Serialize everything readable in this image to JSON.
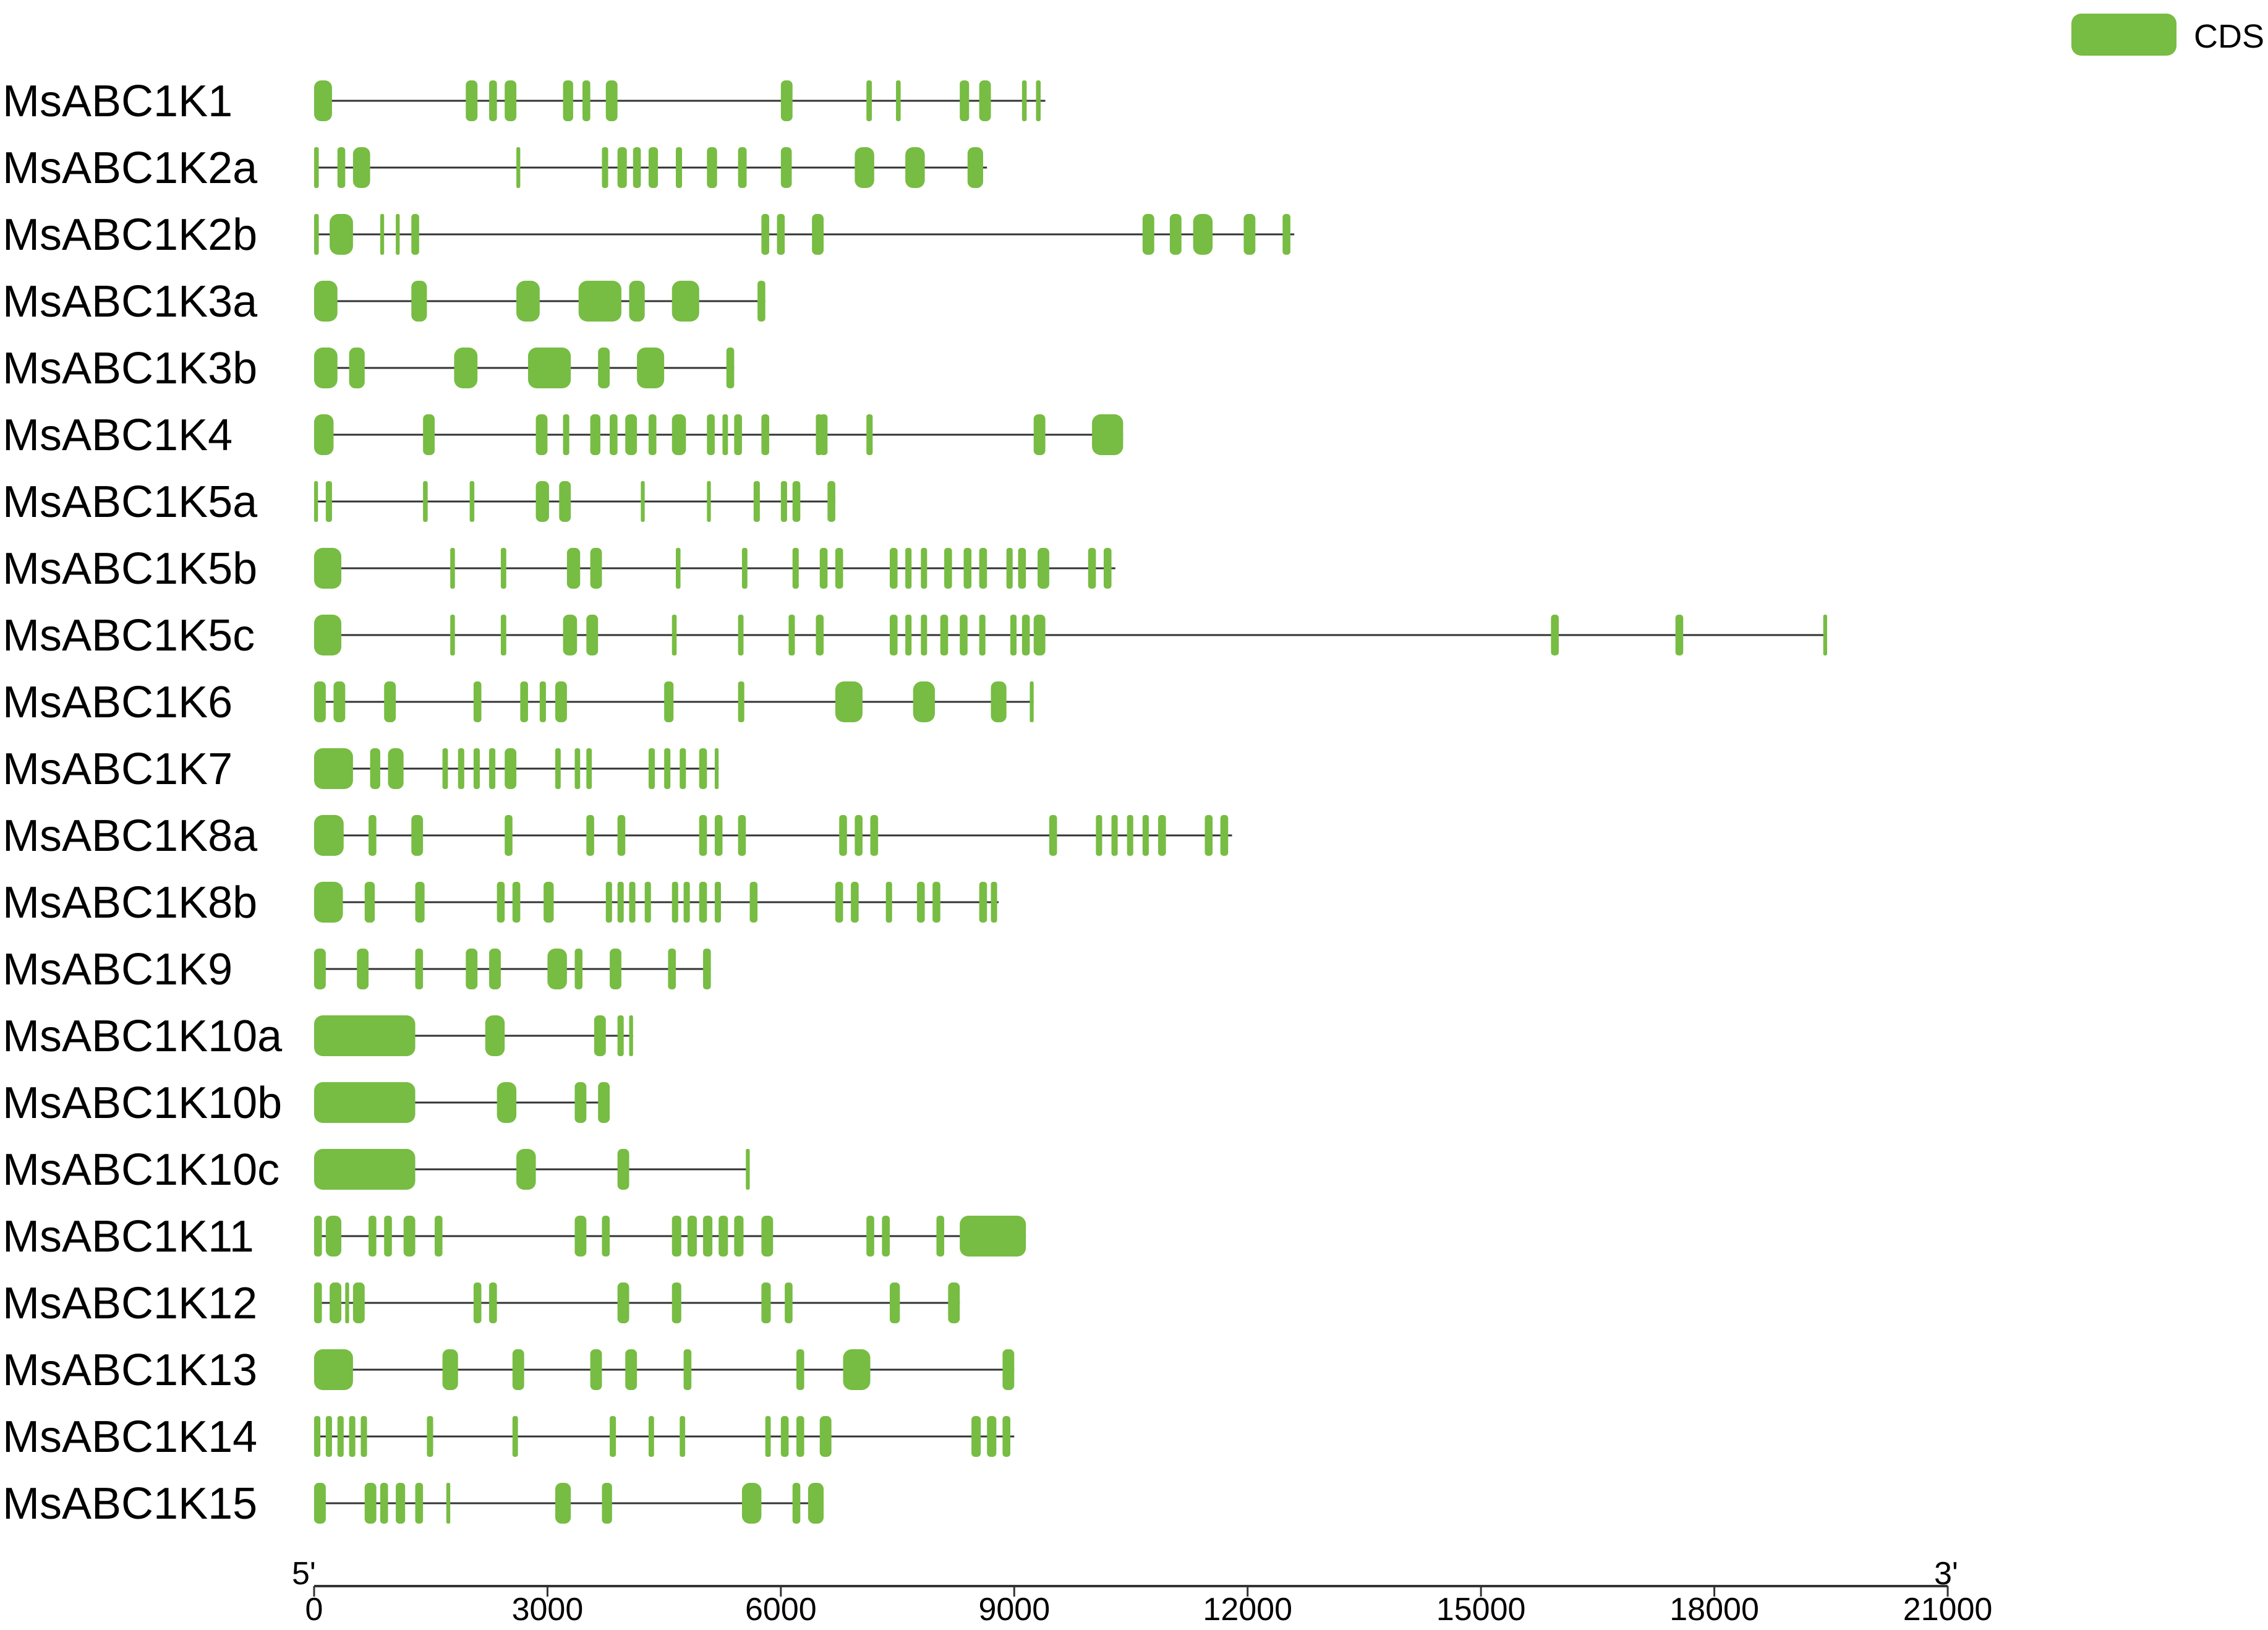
{
  "legend": {
    "label": "CDS",
    "color": "#77bc43"
  },
  "colors": {
    "cds": "#77bc43",
    "line": "#333333",
    "axis": "#333333"
  },
  "axis": {
    "start_label": "5'",
    "end_label": "3'",
    "min": 0,
    "max": 21000,
    "ticks": [
      0,
      3000,
      6000,
      9000,
      12000,
      15000,
      18000,
      21000
    ]
  },
  "genes": [
    {
      "name": "MsABC1K1",
      "length": 9400,
      "exons": [
        [
          0,
          230
        ],
        [
          1950,
          2100
        ],
        [
          2250,
          2350
        ],
        [
          2450,
          2600
        ],
        [
          3200,
          3330
        ],
        [
          3450,
          3550
        ],
        [
          3750,
          3900
        ],
        [
          6000,
          6150
        ],
        [
          7100,
          7170
        ],
        [
          7480,
          7540
        ],
        [
          8300,
          8420
        ],
        [
          8550,
          8700
        ],
        [
          9100,
          9160
        ],
        [
          9280,
          9340
        ]
      ]
    },
    {
      "name": "MsABC1K2a",
      "length": 8650,
      "exons": [
        [
          0,
          60
        ],
        [
          300,
          400
        ],
        [
          500,
          720
        ],
        [
          2600,
          2650
        ],
        [
          3700,
          3780
        ],
        [
          3900,
          4020
        ],
        [
          4100,
          4200
        ],
        [
          4300,
          4420
        ],
        [
          4650,
          4730
        ],
        [
          5050,
          5180
        ],
        [
          5450,
          5560
        ],
        [
          6000,
          6140
        ],
        [
          6950,
          7200
        ],
        [
          7600,
          7850
        ],
        [
          8400,
          8600
        ]
      ]
    },
    {
      "name": "MsABC1K2b",
      "length": 12600,
      "exons": [
        [
          0,
          60
        ],
        [
          200,
          500
        ],
        [
          850,
          900
        ],
        [
          1050,
          1100
        ],
        [
          1250,
          1350
        ],
        [
          5750,
          5850
        ],
        [
          5950,
          6050
        ],
        [
          6400,
          6550
        ],
        [
          10650,
          10800
        ],
        [
          11000,
          11150
        ],
        [
          11300,
          11550
        ],
        [
          11950,
          12100
        ],
        [
          12450,
          12550
        ]
      ]
    },
    {
      "name": "MsABC1K3a",
      "length": 5800,
      "exons": [
        [
          0,
          300
        ],
        [
          1250,
          1450
        ],
        [
          2600,
          2900
        ],
        [
          3400,
          3950
        ],
        [
          4050,
          4250
        ],
        [
          4600,
          4950
        ],
        [
          5700,
          5800
        ]
      ]
    },
    {
      "name": "MsABC1K3b",
      "length": 5400,
      "exons": [
        [
          0,
          300
        ],
        [
          450,
          650
        ],
        [
          1800,
          2100
        ],
        [
          2750,
          3300
        ],
        [
          3650,
          3800
        ],
        [
          4150,
          4500
        ],
        [
          5300,
          5400
        ]
      ]
    },
    {
      "name": "MsABC1K4",
      "length": 10400,
      "exons": [
        [
          0,
          250
        ],
        [
          1400,
          1550
        ],
        [
          2850,
          3000
        ],
        [
          3200,
          3280
        ],
        [
          3550,
          3680
        ],
        [
          3800,
          3900
        ],
        [
          4000,
          4150
        ],
        [
          4300,
          4400
        ],
        [
          4600,
          4780
        ],
        [
          5050,
          5150
        ],
        [
          5250,
          5320
        ],
        [
          5400,
          5500
        ],
        [
          5750,
          5850
        ],
        [
          6450,
          6530
        ],
        [
          6500,
          6600
        ],
        [
          7100,
          7180
        ],
        [
          9250,
          9400
        ],
        [
          10000,
          10400
        ]
      ]
    },
    {
      "name": "MsABC1K5a",
      "length": 6700,
      "exons": [
        [
          0,
          50
        ],
        [
          150,
          230
        ],
        [
          1400,
          1460
        ],
        [
          2000,
          2060
        ],
        [
          2850,
          3020
        ],
        [
          3150,
          3300
        ],
        [
          4200,
          4250
        ],
        [
          5050,
          5100
        ],
        [
          5650,
          5730
        ],
        [
          6000,
          6080
        ],
        [
          6150,
          6250
        ],
        [
          6600,
          6700
        ]
      ]
    },
    {
      "name": "MsABC1K5b",
      "length": 10300,
      "exons": [
        [
          0,
          350
        ],
        [
          1750,
          1810
        ],
        [
          2400,
          2470
        ],
        [
          3250,
          3420
        ],
        [
          3550,
          3700
        ],
        [
          4650,
          4710
        ],
        [
          5500,
          5570
        ],
        [
          6150,
          6230
        ],
        [
          6500,
          6600
        ],
        [
          6700,
          6800
        ],
        [
          7400,
          7500
        ],
        [
          7600,
          7680
        ],
        [
          7800,
          7880
        ],
        [
          8100,
          8200
        ],
        [
          8350,
          8450
        ],
        [
          8550,
          8650
        ],
        [
          8900,
          8980
        ],
        [
          9050,
          9150
        ],
        [
          9300,
          9450
        ],
        [
          9950,
          10050
        ],
        [
          10150,
          10250
        ]
      ]
    },
    {
      "name": "MsABC1K5c",
      "length": 19450,
      "exons": [
        [
          0,
          350
        ],
        [
          1750,
          1810
        ],
        [
          2400,
          2470
        ],
        [
          3200,
          3380
        ],
        [
          3500,
          3650
        ],
        [
          4600,
          4660
        ],
        [
          5450,
          5520
        ],
        [
          6100,
          6180
        ],
        [
          6450,
          6550
        ],
        [
          7400,
          7500
        ],
        [
          7600,
          7680
        ],
        [
          7800,
          7880
        ],
        [
          8050,
          8150
        ],
        [
          8300,
          8400
        ],
        [
          8550,
          8630
        ],
        [
          8950,
          9030
        ],
        [
          9100,
          9200
        ],
        [
          9250,
          9400
        ],
        [
          15900,
          16000
        ],
        [
          17500,
          17600
        ],
        [
          19400,
          19450
        ]
      ]
    },
    {
      "name": "MsABC1K6",
      "length": 9250,
      "exons": [
        [
          0,
          150
        ],
        [
          250,
          400
        ],
        [
          900,
          1050
        ],
        [
          2050,
          2150
        ],
        [
          2650,
          2750
        ],
        [
          2900,
          2980
        ],
        [
          3100,
          3250
        ],
        [
          4500,
          4620
        ],
        [
          5450,
          5530
        ],
        [
          6700,
          7050
        ],
        [
          7700,
          7980
        ],
        [
          8700,
          8900
        ],
        [
          9200,
          9250
        ]
      ]
    },
    {
      "name": "MsABC1K7",
      "length": 5200,
      "exons": [
        [
          0,
          500
        ],
        [
          720,
          850
        ],
        [
          950,
          1150
        ],
        [
          1650,
          1720
        ],
        [
          1850,
          1930
        ],
        [
          2050,
          2130
        ],
        [
          2250,
          2330
        ],
        [
          2450,
          2600
        ],
        [
          3100,
          3170
        ],
        [
          3350,
          3420
        ],
        [
          3500,
          3570
        ],
        [
          4300,
          4380
        ],
        [
          4500,
          4580
        ],
        [
          4700,
          4780
        ],
        [
          4950,
          5050
        ],
        [
          5150,
          5200
        ]
      ]
    },
    {
      "name": "MsABC1K8a",
      "length": 11800,
      "exons": [
        [
          0,
          380
        ],
        [
          700,
          800
        ],
        [
          1250,
          1400
        ],
        [
          2450,
          2550
        ],
        [
          3500,
          3600
        ],
        [
          3900,
          4000
        ],
        [
          4950,
          5050
        ],
        [
          5150,
          5250
        ],
        [
          5450,
          5550
        ],
        [
          6750,
          6850
        ],
        [
          6950,
          7050
        ],
        [
          7150,
          7250
        ],
        [
          9450,
          9550
        ],
        [
          10050,
          10130
        ],
        [
          10250,
          10330
        ],
        [
          10450,
          10530
        ],
        [
          10650,
          10730
        ],
        [
          10850,
          10950
        ],
        [
          11450,
          11550
        ],
        [
          11650,
          11750
        ]
      ]
    },
    {
      "name": "MsABC1K8b",
      "length": 8800,
      "exons": [
        [
          0,
          370
        ],
        [
          650,
          780
        ],
        [
          1300,
          1420
        ],
        [
          2350,
          2450
        ],
        [
          2550,
          2650
        ],
        [
          2950,
          3080
        ],
        [
          3750,
          3830
        ],
        [
          3900,
          3980
        ],
        [
          4050,
          4130
        ],
        [
          4250,
          4330
        ],
        [
          4600,
          4680
        ],
        [
          4750,
          4830
        ],
        [
          4950,
          5050
        ],
        [
          5150,
          5230
        ],
        [
          5600,
          5700
        ],
        [
          6700,
          6800
        ],
        [
          6900,
          7000
        ],
        [
          7350,
          7430
        ],
        [
          7750,
          7850
        ],
        [
          7950,
          8050
        ],
        [
          8550,
          8650
        ],
        [
          8700,
          8780
        ]
      ]
    },
    {
      "name": "MsABC1K9",
      "length": 5100,
      "exons": [
        [
          0,
          150
        ],
        [
          550,
          700
        ],
        [
          1300,
          1400
        ],
        [
          1950,
          2100
        ],
        [
          2250,
          2400
        ],
        [
          3000,
          3250
        ],
        [
          3350,
          3450
        ],
        [
          3800,
          3950
        ],
        [
          4550,
          4650
        ],
        [
          5000,
          5100
        ]
      ]
    },
    {
      "name": "MsABC1K10a",
      "length": 4100,
      "exons": [
        [
          0,
          1300
        ],
        [
          2200,
          2450
        ],
        [
          3600,
          3750
        ],
        [
          3900,
          3980
        ],
        [
          4050,
          4100
        ]
      ]
    },
    {
      "name": "MsABC1K10b",
      "length": 3800,
      "exons": [
        [
          0,
          1300
        ],
        [
          2350,
          2600
        ],
        [
          3350,
          3500
        ],
        [
          3650,
          3800
        ]
      ]
    },
    {
      "name": "MsABC1K10c",
      "length": 5600,
      "exons": [
        [
          0,
          1300
        ],
        [
          2600,
          2850
        ],
        [
          3900,
          4050
        ],
        [
          5550,
          5600
        ]
      ]
    },
    {
      "name": "MsABC1K11",
      "length": 9150,
      "exons": [
        [
          0,
          100
        ],
        [
          150,
          350
        ],
        [
          700,
          800
        ],
        [
          900,
          1000
        ],
        [
          1150,
          1300
        ],
        [
          1550,
          1650
        ],
        [
          3350,
          3500
        ],
        [
          3700,
          3800
        ],
        [
          4600,
          4720
        ],
        [
          4800,
          4920
        ],
        [
          5000,
          5120
        ],
        [
          5200,
          5320
        ],
        [
          5400,
          5520
        ],
        [
          5750,
          5900
        ],
        [
          7100,
          7200
        ],
        [
          7300,
          7400
        ],
        [
          8000,
          8100
        ],
        [
          8300,
          9150
        ]
      ]
    },
    {
      "name": "MsABC1K12",
      "length": 8300,
      "exons": [
        [
          0,
          100
        ],
        [
          200,
          350
        ],
        [
          400,
          450
        ],
        [
          500,
          650
        ],
        [
          2050,
          2150
        ],
        [
          2250,
          2350
        ],
        [
          3900,
          4050
        ],
        [
          4600,
          4720
        ],
        [
          5750,
          5870
        ],
        [
          6050,
          6150
        ],
        [
          7400,
          7530
        ],
        [
          8150,
          8300
        ]
      ]
    },
    {
      "name": "MsABC1K13",
      "length": 9000,
      "exons": [
        [
          0,
          500
        ],
        [
          1650,
          1850
        ],
        [
          2550,
          2700
        ],
        [
          3550,
          3700
        ],
        [
          4000,
          4150
        ],
        [
          4750,
          4850
        ],
        [
          6200,
          6300
        ],
        [
          6800,
          7150
        ],
        [
          8850,
          9000
        ]
      ]
    },
    {
      "name": "MsABC1K14",
      "length": 9000,
      "exons": [
        [
          0,
          80
        ],
        [
          150,
          230
        ],
        [
          300,
          380
        ],
        [
          450,
          530
        ],
        [
          600,
          680
        ],
        [
          1450,
          1530
        ],
        [
          2550,
          2620
        ],
        [
          3800,
          3880
        ],
        [
          4300,
          4370
        ],
        [
          4700,
          4770
        ],
        [
          5800,
          5870
        ],
        [
          6000,
          6100
        ],
        [
          6200,
          6300
        ],
        [
          6500,
          6650
        ],
        [
          8450,
          8570
        ],
        [
          8650,
          8770
        ],
        [
          8850,
          8950
        ]
      ]
    },
    {
      "name": "MsABC1K15",
      "length": 6550,
      "exons": [
        [
          0,
          150
        ],
        [
          650,
          800
        ],
        [
          850,
          950
        ],
        [
          1050,
          1170
        ],
        [
          1300,
          1400
        ],
        [
          1700,
          1750
        ],
        [
          3100,
          3300
        ],
        [
          3700,
          3830
        ],
        [
          5500,
          5750
        ],
        [
          6150,
          6250
        ],
        [
          6350,
          6550
        ]
      ]
    }
  ]
}
